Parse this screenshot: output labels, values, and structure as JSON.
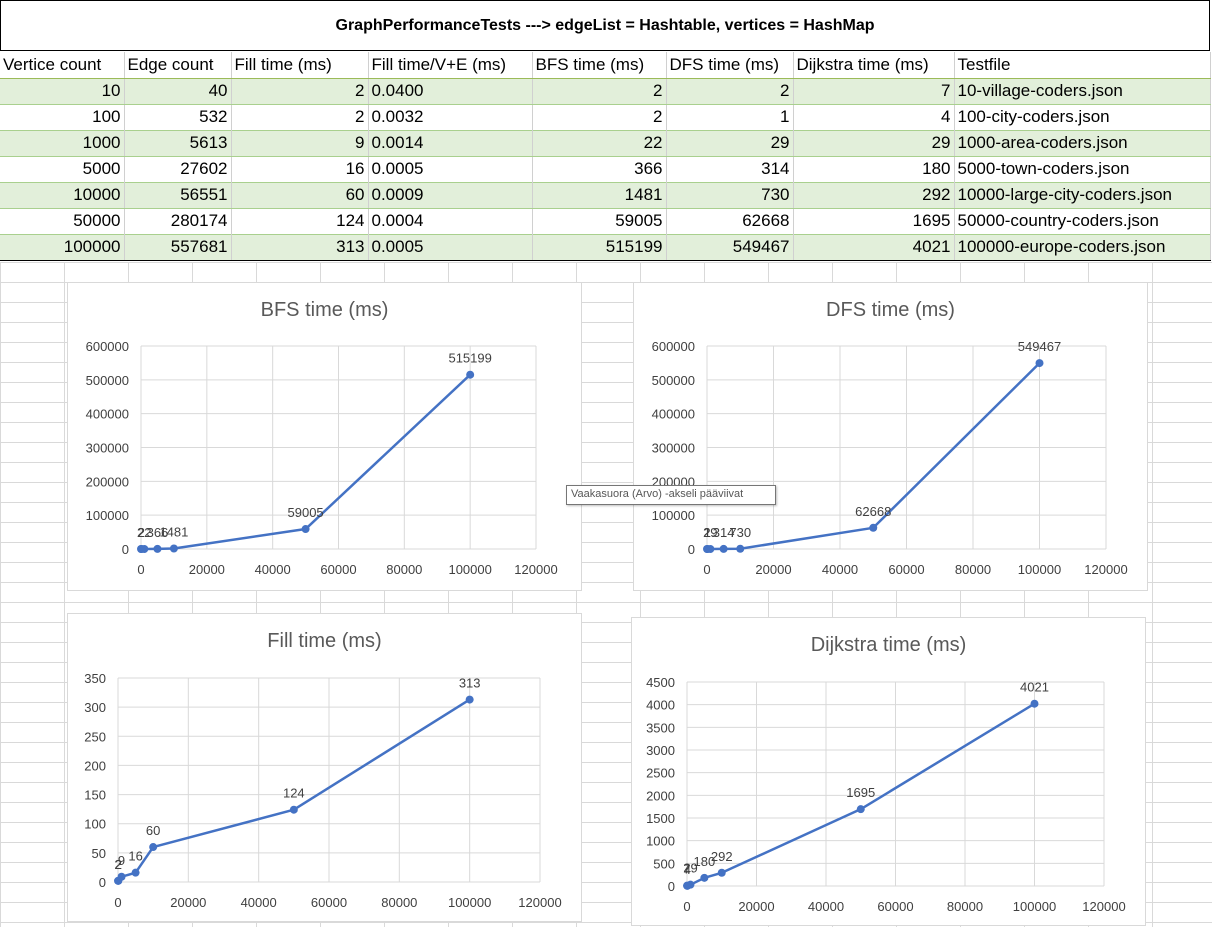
{
  "sheet": {
    "title": "GraphPerformanceTests ---> edgeList = Hashtable, vertices = HashMap",
    "headers": [
      "Vertice count",
      "Edge count",
      "Fill time (ms)",
      "Fill time/V+E (ms)",
      "BFS time (ms)",
      "DFS time (ms)",
      "Dijkstra time (ms)",
      "Testfile"
    ],
    "rows": [
      [
        "10",
        "40",
        "2",
        "0.0400",
        "2",
        "2",
        "7",
        "10-village-coders.json"
      ],
      [
        "100",
        "532",
        "2",
        "0.0032",
        "2",
        "1",
        "4",
        "100-city-coders.json"
      ],
      [
        "1000",
        "5613",
        "9",
        "0.0014",
        "22",
        "29",
        "29",
        "1000-area-coders.json"
      ],
      [
        "5000",
        "27602",
        "16",
        "0.0005",
        "366",
        "314",
        "180",
        "5000-town-coders.json"
      ],
      [
        "10000",
        "56551",
        "60",
        "0.0009",
        "1481",
        "730",
        "292",
        "10000-large-city-coders.json"
      ],
      [
        "50000",
        "280174",
        "124",
        "0.0004",
        "59005",
        "62668",
        "1695",
        "50000-country-coders.json"
      ],
      [
        "100000",
        "557681",
        "313",
        "0.0005",
        "515199",
        "549467",
        "4021",
        "100000-europe-coders.json"
      ]
    ]
  },
  "tooltip": "Vaakasuora (Arvo) -akseli pääviivat",
  "colors": {
    "series": "#4472c4",
    "band": "#e2efda",
    "grid": "#d9d9d9"
  },
  "chart_data": [
    {
      "type": "scatter",
      "title": "BFS time (ms)",
      "x": [
        10,
        100,
        1000,
        5000,
        10000,
        50000,
        100000
      ],
      "y": [
        2,
        2,
        22,
        366,
        1481,
        59005,
        515199
      ],
      "xlim": [
        0,
        120000
      ],
      "xticks": [
        0,
        20000,
        40000,
        60000,
        80000,
        100000,
        120000
      ],
      "ylim": [
        0,
        600000
      ],
      "yticks": [
        0,
        100000,
        200000,
        300000,
        400000,
        500000,
        600000
      ],
      "grid": true,
      "data_labels": true
    },
    {
      "type": "scatter",
      "title": "DFS time (ms)",
      "x": [
        10,
        100,
        1000,
        5000,
        10000,
        50000,
        100000
      ],
      "y": [
        2,
        1,
        29,
        314,
        730,
        62668,
        549467
      ],
      "xlim": [
        0,
        120000
      ],
      "xticks": [
        0,
        20000,
        40000,
        60000,
        80000,
        100000,
        120000
      ],
      "ylim": [
        0,
        600000
      ],
      "yticks": [
        0,
        100000,
        200000,
        300000,
        400000,
        500000,
        600000
      ],
      "grid": true,
      "data_labels": true
    },
    {
      "type": "scatter",
      "title": "Fill time (ms)",
      "x": [
        10,
        100,
        1000,
        5000,
        10000,
        50000,
        100000
      ],
      "y": [
        2,
        2,
        9,
        16,
        60,
        124,
        313
      ],
      "xlim": [
        0,
        120000
      ],
      "xticks": [
        0,
        20000,
        40000,
        60000,
        80000,
        100000,
        120000
      ],
      "ylim": [
        0,
        350
      ],
      "yticks": [
        0,
        50,
        100,
        150,
        200,
        250,
        300,
        350
      ],
      "grid": true,
      "data_labels": true
    },
    {
      "type": "scatter",
      "title": "Dijkstra time (ms)",
      "x": [
        10,
        100,
        1000,
        5000,
        10000,
        50000,
        100000
      ],
      "y": [
        7,
        4,
        29,
        180,
        292,
        1695,
        4021
      ],
      "xlim": [
        0,
        120000
      ],
      "xticks": [
        0,
        20000,
        40000,
        60000,
        80000,
        100000,
        120000
      ],
      "ylim": [
        0,
        4500
      ],
      "yticks": [
        0,
        500,
        1000,
        1500,
        2000,
        2500,
        3000,
        3500,
        4000,
        4500
      ],
      "grid": true,
      "data_labels": true
    }
  ]
}
